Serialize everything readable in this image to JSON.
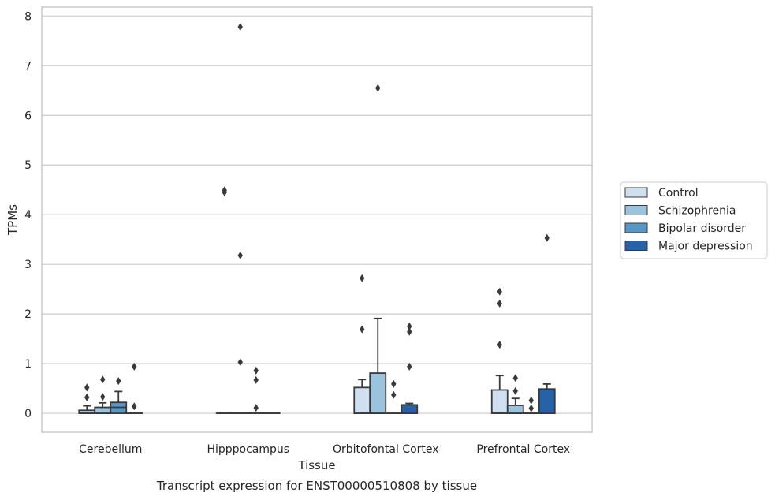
{
  "chart_data": {
    "type": "box",
    "title": "",
    "caption": "Transcript expression for ENST00000510808 by tissue",
    "xlabel": "Tissue",
    "ylabel": "TPMs",
    "ylim": [
      -0.38,
      8.18
    ],
    "yticks": [
      "0",
      "1",
      "2",
      "3",
      "4",
      "5",
      "6",
      "7",
      "8"
    ],
    "grid": "horizontal",
    "legend_position": "right",
    "categories": [
      "Cerebellum",
      "Hipppocampus",
      "Orbitofontal Cortex",
      "Prefrontal Cortex"
    ],
    "series": [
      {
        "name": "Control",
        "color": "#d0e0f1",
        "boxes": [
          {
            "q1": 0,
            "median": 0,
            "q3": 0.06,
            "whisker_low": 0,
            "whisker_high": 0.15,
            "outliers": [
              0.32,
              0.52
            ]
          },
          {
            "q1": 0,
            "median": 0,
            "q3": 0,
            "whisker_low": 0,
            "whisker_high": 0,
            "outliers": [
              4.45,
              4.49
            ]
          },
          {
            "q1": 0,
            "median": 0,
            "q3": 0.52,
            "whisker_low": 0,
            "whisker_high": 0.68,
            "outliers": [
              1.69,
              2.72
            ]
          },
          {
            "q1": 0,
            "median": 0,
            "q3": 0.47,
            "whisker_low": 0,
            "whisker_high": 0.76,
            "outliers": [
              1.38,
              2.21,
              2.45
            ]
          }
        ]
      },
      {
        "name": "Schizophrenia",
        "color": "#9cc3de",
        "boxes": [
          {
            "q1": 0,
            "median": 0,
            "q3": 0.12,
            "whisker_low": 0,
            "whisker_high": 0.21,
            "outliers": [
              0.33,
              0.68
            ]
          },
          {
            "q1": 0,
            "median": 0,
            "q3": 0,
            "whisker_low": 0,
            "whisker_high": 0,
            "outliers": [
              1.03,
              3.18,
              7.78
            ]
          },
          {
            "q1": 0,
            "median": 0,
            "q3": 0.81,
            "whisker_low": 0,
            "whisker_high": 1.91,
            "outliers": [
              6.55
            ]
          },
          {
            "q1": 0,
            "median": 0,
            "q3": 0.16,
            "whisker_low": 0,
            "whisker_high": 0.3,
            "outliers": [
              0.45,
              0.71
            ]
          }
        ]
      },
      {
        "name": "Bipolar disorder",
        "color": "#5897c6",
        "boxes": [
          {
            "q1": 0,
            "median": 0.12,
            "q3": 0.22,
            "whisker_low": 0,
            "whisker_high": 0.44,
            "outliers": [
              0.65
            ]
          },
          {
            "q1": 0,
            "median": 0,
            "q3": 0,
            "whisker_low": 0,
            "whisker_high": 0,
            "outliers": [
              0.11,
              0.67,
              0.86
            ]
          },
          {
            "q1": 0,
            "median": 0,
            "q3": 0,
            "whisker_low": 0,
            "whisker_high": 0,
            "outliers": [
              0.37,
              0.59
            ]
          },
          {
            "q1": 0,
            "median": 0,
            "q3": 0,
            "whisker_low": 0,
            "whisker_high": 0,
            "outliers": [
              0.1,
              0.26
            ]
          }
        ]
      },
      {
        "name": "Major depression",
        "color": "#2563a6",
        "boxes": [
          {
            "q1": 0,
            "median": 0,
            "q3": 0,
            "whisker_low": 0,
            "whisker_high": 0,
            "outliers": [
              0.14,
              0.94
            ]
          },
          {
            "q1": 0,
            "median": 0,
            "q3": 0,
            "whisker_low": 0,
            "whisker_high": 0,
            "outliers": []
          },
          {
            "q1": 0,
            "median": 0,
            "q3": 0.17,
            "whisker_low": 0,
            "whisker_high": 0.2,
            "outliers": [
              0.94,
              1.64,
              1.75
            ]
          },
          {
            "q1": 0,
            "median": 0,
            "q3": 0.49,
            "whisker_low": 0,
            "whisker_high": 0.59,
            "outliers": [
              3.53
            ]
          }
        ]
      }
    ]
  }
}
